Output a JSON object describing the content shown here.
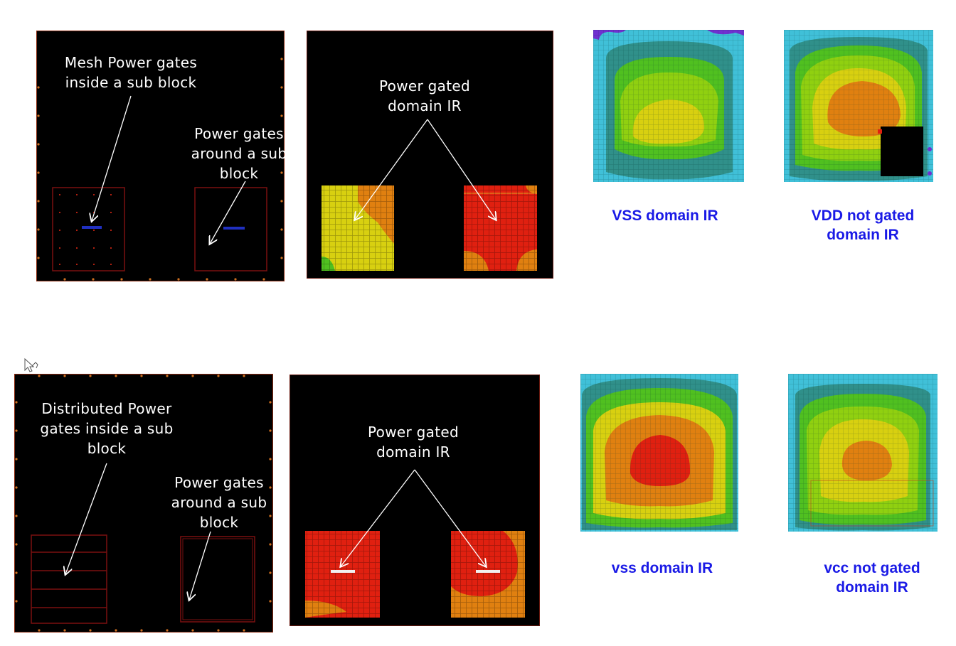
{
  "top_row": {
    "layout_panel": {
      "label_mesh": "Mesh Power gates\ninside a sub block",
      "label_around": "Power gates\naround a sub\nblock"
    },
    "ir_panel": {
      "label": "Power gated\ndomain IR"
    },
    "vss_map": {
      "caption": "VSS domain  IR"
    },
    "vdd_map": {
      "caption": "VDD not gated\ndomain  IR"
    }
  },
  "bottom_row": {
    "layout_panel": {
      "label_distributed": "Distributed Power\ngates inside a sub\nblock",
      "label_around": "Power gates\naround a sub\nblock"
    },
    "ir_panel": {
      "label": "Power gated\ndomain IR"
    },
    "vss_map": {
      "caption": "vss domain  IR"
    },
    "vcc_map": {
      "caption": "vcc not gated\ndomain  IR"
    }
  },
  "colors": {
    "background": "#000000",
    "block_outline": "#7a1010",
    "pad": "#d07020",
    "arrow": "#ffffff",
    "caption": "#1a1ae6",
    "ir_levels": [
      "#40c0d8",
      "#30908a",
      "#50c020",
      "#90d010",
      "#d8d010",
      "#e08010",
      "#e02010"
    ]
  }
}
